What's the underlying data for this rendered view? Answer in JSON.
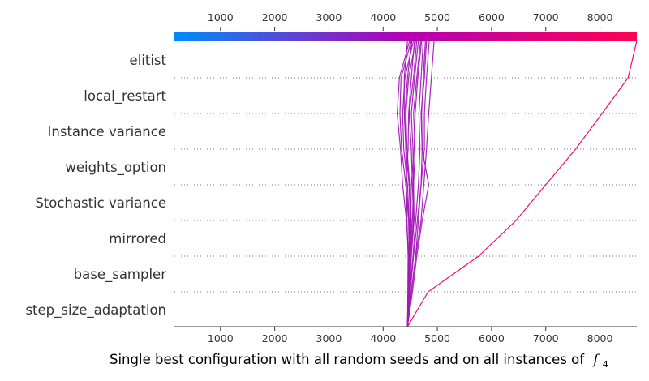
{
  "chart_data": {
    "type": "line",
    "title": "",
    "xlabel": "Single best configuration with all random seeds and on all instances of",
    "xlabel_math": "f",
    "xlabel_math_sub": "4",
    "xlim": [
      150,
      8680
    ],
    "xticks": [
      1000,
      2000,
      3000,
      4000,
      5000,
      6000,
      7000,
      8000
    ],
    "xtick_labels": [
      "1000",
      "2000",
      "3000",
      "4000",
      "5000",
      "6000",
      "7000",
      "8000"
    ],
    "features": [
      "elitist",
      "local_restart",
      "Instance variance",
      "weights_option",
      "Stochastic variance",
      "mirrored",
      "base_sampler",
      "step_size_adaptation"
    ],
    "base_value": 4450,
    "grid": true,
    "colorbar_range": [
      150,
      8680
    ],
    "colors": {
      "low": "#008bfb",
      "mid": "#b400b4",
      "high": "#ff0052",
      "typical_line": "#a21ab6",
      "outlier_line": "#f40a68",
      "grid": "#777777",
      "axis": "#333333"
    },
    "series": [
      {
        "values": [
          4450,
          4455,
          4460,
          4440,
          4430,
          4420,
          4390,
          4390,
          4450
        ]
      },
      {
        "values": [
          4450,
          4460,
          4470,
          4430,
          4360,
          4320,
          4260,
          4300,
          4490
        ]
      },
      {
        "values": [
          4450,
          4470,
          4480,
          4480,
          4420,
          4340,
          4310,
          4330,
          4520
        ]
      },
      {
        "values": [
          4450,
          4480,
          4500,
          4480,
          4450,
          4380,
          4360,
          4400,
          4560
        ]
      },
      {
        "values": [
          4450,
          4470,
          4500,
          4520,
          4490,
          4440,
          4420,
          4470,
          4600
        ]
      },
      {
        "values": [
          4450,
          4480,
          4510,
          4560,
          4540,
          4520,
          4480,
          4560,
          4620
        ]
      },
      {
        "values": [
          4450,
          4490,
          4520,
          4570,
          4560,
          4550,
          4520,
          4580,
          4650
        ]
      },
      {
        "values": [
          4450,
          4480,
          4500,
          4540,
          4560,
          4590,
          4560,
          4620,
          4690
        ]
      },
      {
        "values": [
          4450,
          4470,
          4490,
          4510,
          4520,
          4570,
          4590,
          4640,
          4710
        ]
      },
      {
        "values": [
          4450,
          4490,
          4550,
          4600,
          4650,
          4680,
          4660,
          4700,
          4740
        ]
      },
      {
        "values": [
          4450,
          4520,
          4600,
          4650,
          4700,
          4720,
          4710,
          4740,
          4780
        ]
      },
      {
        "values": [
          4450,
          4540,
          4620,
          4720,
          4840,
          4720,
          4700,
          4760,
          4800
        ]
      },
      {
        "values": [
          4450,
          4500,
          4560,
          4630,
          4700,
          4760,
          4760,
          4800,
          4850
        ]
      },
      {
        "values": [
          4450,
          4520,
          4600,
          4700,
          4750,
          4800,
          4840,
          4890,
          4940
        ]
      },
      {
        "values": [
          4450,
          4470,
          4480,
          4470,
          4420,
          4460,
          4470,
          4520,
          4580
        ]
      },
      {
        "values": [
          4450,
          4460,
          4470,
          4500,
          4480,
          4420,
          4400,
          4450,
          4530
        ]
      },
      {
        "values": [
          4450,
          4830,
          5760,
          6450,
          7000,
          7550,
          8040,
          8520,
          8680
        ]
      }
    ]
  }
}
